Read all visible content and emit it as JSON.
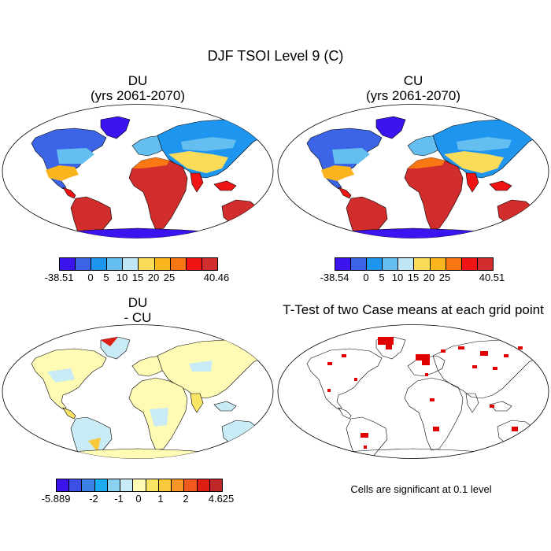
{
  "figure": {
    "title": "DJF TSOI Level 9 (C)",
    "footnote": "Cells are significant at 0.1 level"
  },
  "panels": [
    {
      "id": "du",
      "title_line1": "DU",
      "title_line2": "(yrs 2061-2070)",
      "colorbar": {
        "colors": [
          "#3c14f0",
          "#3c64e6",
          "#1e96f0",
          "#64bef0",
          "#bee6f5",
          "#fadc5a",
          "#fab41e",
          "#fa7814",
          "#f01414",
          "#d22d2d"
        ],
        "labels": [
          "-38.51",
          "0",
          "5",
          "10",
          "15",
          "20",
          "25",
          "40.46"
        ]
      }
    },
    {
      "id": "cu",
      "title_line1": "CU",
      "title_line2": "(yrs 2061-2070)",
      "colorbar": {
        "colors": [
          "#3c14f0",
          "#3c64e6",
          "#1e96f0",
          "#64bef0",
          "#bee6f5",
          "#fadc5a",
          "#fab41e",
          "#fa7814",
          "#f01414",
          "#d22d2d"
        ],
        "labels": [
          "-38.54",
          "0",
          "5",
          "10",
          "15",
          "20",
          "25",
          "40.51"
        ]
      }
    },
    {
      "id": "diff",
      "title_line1": "DU",
      "title_line2": "- CU",
      "colorbar": {
        "colors": [
          "#3c14f0",
          "#3c50e6",
          "#3c82e6",
          "#1eaaf0",
          "#8cd2f0",
          "#c8ebf5",
          "#fffab4",
          "#fae664",
          "#fac83c",
          "#fa9628",
          "#f05a1e",
          "#dc1e14",
          "#be2828"
        ],
        "labels": [
          "-5.889",
          "-2",
          "-1",
          "0",
          "1",
          "2",
          "4.625"
        ]
      }
    },
    {
      "id": "ttest",
      "title_line1": "T-Test of two Case means at each grid point"
    }
  ]
}
